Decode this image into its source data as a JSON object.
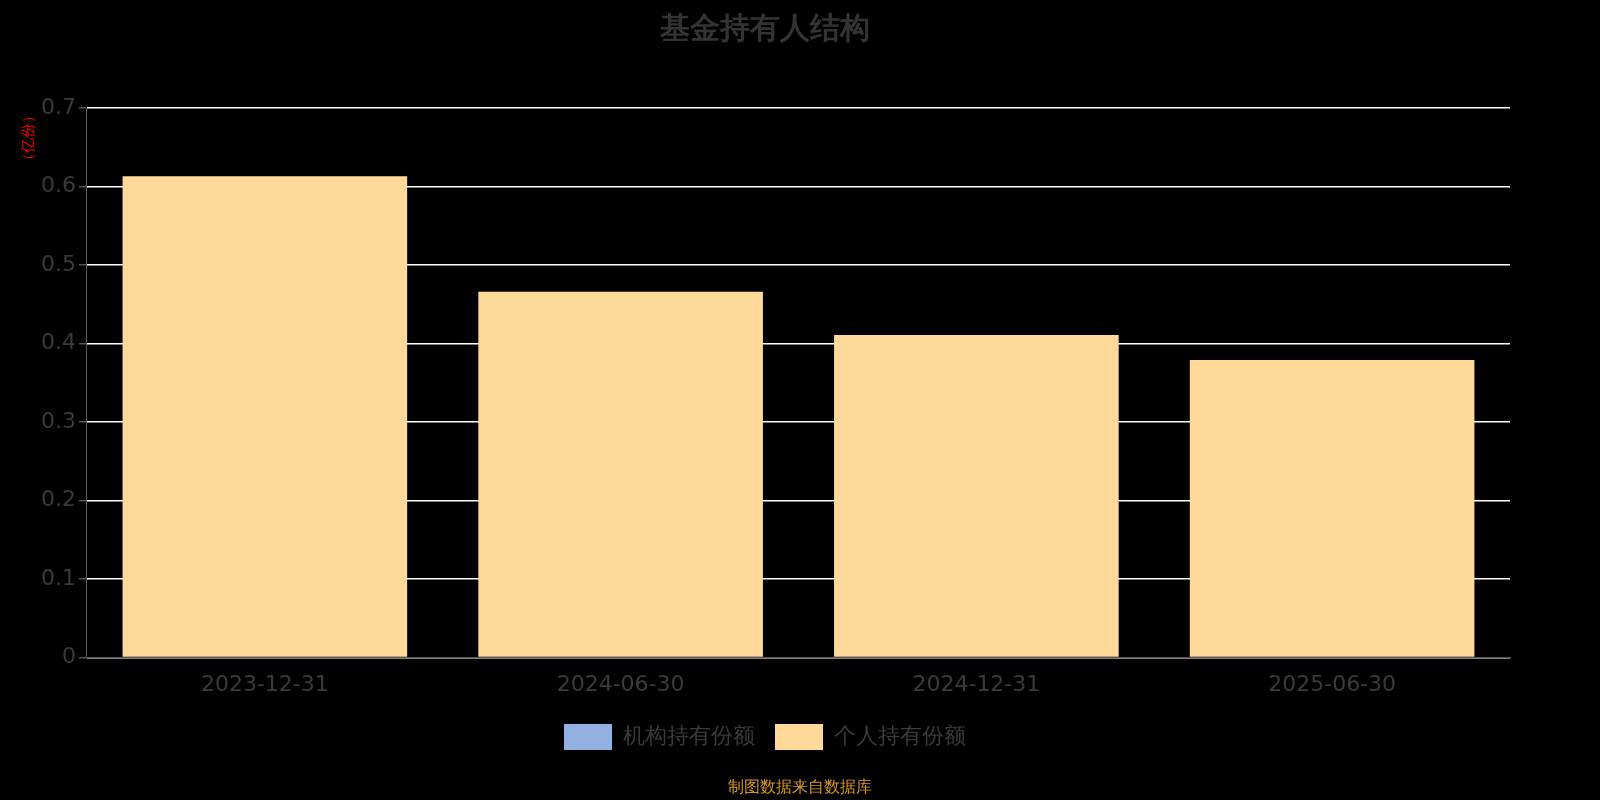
{
  "chart_data": {
    "type": "bar",
    "title": "基金持有人结构",
    "ylabel": "（亿份）",
    "categories": [
      "2023-12-31",
      "2024-06-30",
      "2024-12-31",
      "2025-06-30"
    ],
    "series": [
      {
        "name": "机构持有份额",
        "color": "#92b1e0",
        "values": [
          0,
          0,
          0,
          0
        ]
      },
      {
        "name": "个人持有份额",
        "color": "#ffd999",
        "values": [
          0.613,
          0.466,
          0.411,
          0.379
        ]
      }
    ],
    "stacked": true,
    "ylim": [
      0,
      0.7
    ],
    "yticks": [
      0,
      0.1,
      0.2,
      0.3,
      0.4,
      0.5,
      0.6,
      0.7
    ],
    "grid": "y",
    "legend": "bottom",
    "annotations": [
      "制图数据来自数据库"
    ]
  }
}
